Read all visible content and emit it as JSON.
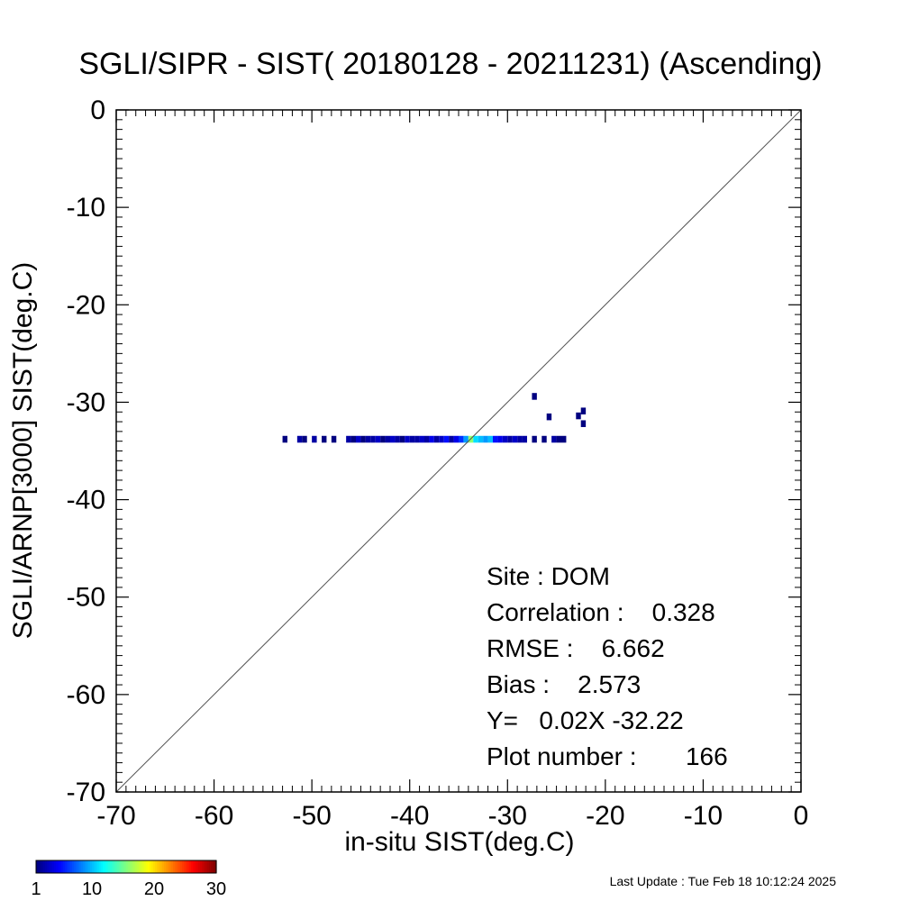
{
  "chart_data": {
    "type": "heatmap",
    "title": "SGLI/SIPR - SIST( 20180128 - 20211231) (Ascending)",
    "xlabel": "in-situ SIST(deg.C)",
    "ylabel": "SGLI/ARNP[3000]     SIST(deg.C)",
    "xlim": [
      -70,
      0
    ],
    "ylim": [
      -70,
      0
    ],
    "xticks": [
      "-70",
      "-60",
      "-50",
      "-40",
      "-30",
      "-20",
      "-10",
      "0"
    ],
    "yticks": [
      "-70",
      "-60",
      "-50",
      "-40",
      "-30",
      "-20",
      "-10",
      "0"
    ],
    "x_tick_values": [
      -70,
      -60,
      -50,
      -40,
      -30,
      -20,
      -10,
      0
    ],
    "y_tick_values": [
      -70,
      -60,
      -50,
      -40,
      -30,
      -20,
      -10,
      0
    ],
    "reference_line": "1:1",
    "grid": false,
    "bin_size": 0.5,
    "cells": [
      {
        "x": -53.0,
        "y": -33.8,
        "count": 1
      },
      {
        "x": -51.5,
        "y": -33.8,
        "count": 2
      },
      {
        "x": -51.0,
        "y": -33.8,
        "count": 1
      },
      {
        "x": -50.0,
        "y": -33.8,
        "count": 2
      },
      {
        "x": -49.0,
        "y": -33.8,
        "count": 1
      },
      {
        "x": -48.0,
        "y": -33.8,
        "count": 1
      },
      {
        "x": -46.5,
        "y": -33.8,
        "count": 2
      },
      {
        "x": -46.0,
        "y": -33.8,
        "count": 1
      },
      {
        "x": -45.5,
        "y": -33.8,
        "count": 3
      },
      {
        "x": -45.0,
        "y": -33.8,
        "count": 1
      },
      {
        "x": -44.5,
        "y": -33.8,
        "count": 2
      },
      {
        "x": -44.0,
        "y": -33.8,
        "count": 2
      },
      {
        "x": -43.5,
        "y": -33.8,
        "count": 3
      },
      {
        "x": -43.0,
        "y": -33.8,
        "count": 1
      },
      {
        "x": -42.5,
        "y": -33.8,
        "count": 2
      },
      {
        "x": -42.0,
        "y": -33.8,
        "count": 3
      },
      {
        "x": -41.5,
        "y": -33.8,
        "count": 2
      },
      {
        "x": -41.0,
        "y": -33.8,
        "count": 1
      },
      {
        "x": -40.5,
        "y": -33.8,
        "count": 3
      },
      {
        "x": -40.0,
        "y": -33.8,
        "count": 2
      },
      {
        "x": -39.5,
        "y": -33.8,
        "count": 2
      },
      {
        "x": -39.0,
        "y": -33.8,
        "count": 3
      },
      {
        "x": -38.5,
        "y": -33.8,
        "count": 2
      },
      {
        "x": -38.0,
        "y": -33.8,
        "count": 4
      },
      {
        "x": -37.5,
        "y": -33.8,
        "count": 2
      },
      {
        "x": -37.0,
        "y": -33.8,
        "count": 3
      },
      {
        "x": -36.5,
        "y": -33.8,
        "count": 5
      },
      {
        "x": -36.0,
        "y": -33.8,
        "count": 2
      },
      {
        "x": -35.5,
        "y": -33.8,
        "count": 4
      },
      {
        "x": -35.0,
        "y": -33.8,
        "count": 6
      },
      {
        "x": -34.5,
        "y": -33.8,
        "count": 9
      },
      {
        "x": -34.0,
        "y": -33.8,
        "count": 16
      },
      {
        "x": -33.5,
        "y": -33.8,
        "count": 11
      },
      {
        "x": -33.0,
        "y": -33.8,
        "count": 10
      },
      {
        "x": -32.5,
        "y": -33.8,
        "count": 9
      },
      {
        "x": -32.0,
        "y": -33.8,
        "count": 10
      },
      {
        "x": -31.5,
        "y": -33.8,
        "count": 5
      },
      {
        "x": -31.0,
        "y": -33.8,
        "count": 4
      },
      {
        "x": -30.5,
        "y": -33.8,
        "count": 3
      },
      {
        "x": -30.0,
        "y": -33.8,
        "count": 2
      },
      {
        "x": -29.5,
        "y": -33.8,
        "count": 3
      },
      {
        "x": -29.0,
        "y": -33.8,
        "count": 2
      },
      {
        "x": -28.5,
        "y": -33.8,
        "count": 2
      },
      {
        "x": -27.5,
        "y": -33.8,
        "count": 1
      },
      {
        "x": -26.5,
        "y": -33.8,
        "count": 1
      },
      {
        "x": -25.5,
        "y": -33.8,
        "count": 2
      },
      {
        "x": -25.0,
        "y": -33.8,
        "count": 1
      },
      {
        "x": -24.5,
        "y": -33.8,
        "count": 1
      },
      {
        "x": -27.5,
        "y": -29.4,
        "count": 1
      },
      {
        "x": -26.0,
        "y": -31.5,
        "count": 1
      },
      {
        "x": -23.0,
        "y": -31.4,
        "count": 1
      },
      {
        "x": -22.5,
        "y": -30.9,
        "count": 1
      },
      {
        "x": -22.5,
        "y": -32.2,
        "count": 1
      }
    ],
    "colorbar": {
      "ticks": [
        "1",
        "10",
        "20",
        "30"
      ],
      "tick_values": [
        1,
        10,
        20,
        30
      ],
      "range": [
        1,
        30
      ],
      "colormap": "jet"
    },
    "stats": {
      "site": "Site : DOM",
      "correlation": "Correlation :    0.328",
      "rmse": "RMSE :    6.662",
      "bias": "Bias :    2.573",
      "regression": "Y=   0.02X -32.22",
      "plot_number": "Plot number :       166"
    }
  },
  "footer": "Last Update : Tue Feb 18 10:12:24 2025",
  "colors": {
    "axis": "#000000",
    "reference_line": "#555555",
    "background": "#ffffff"
  }
}
